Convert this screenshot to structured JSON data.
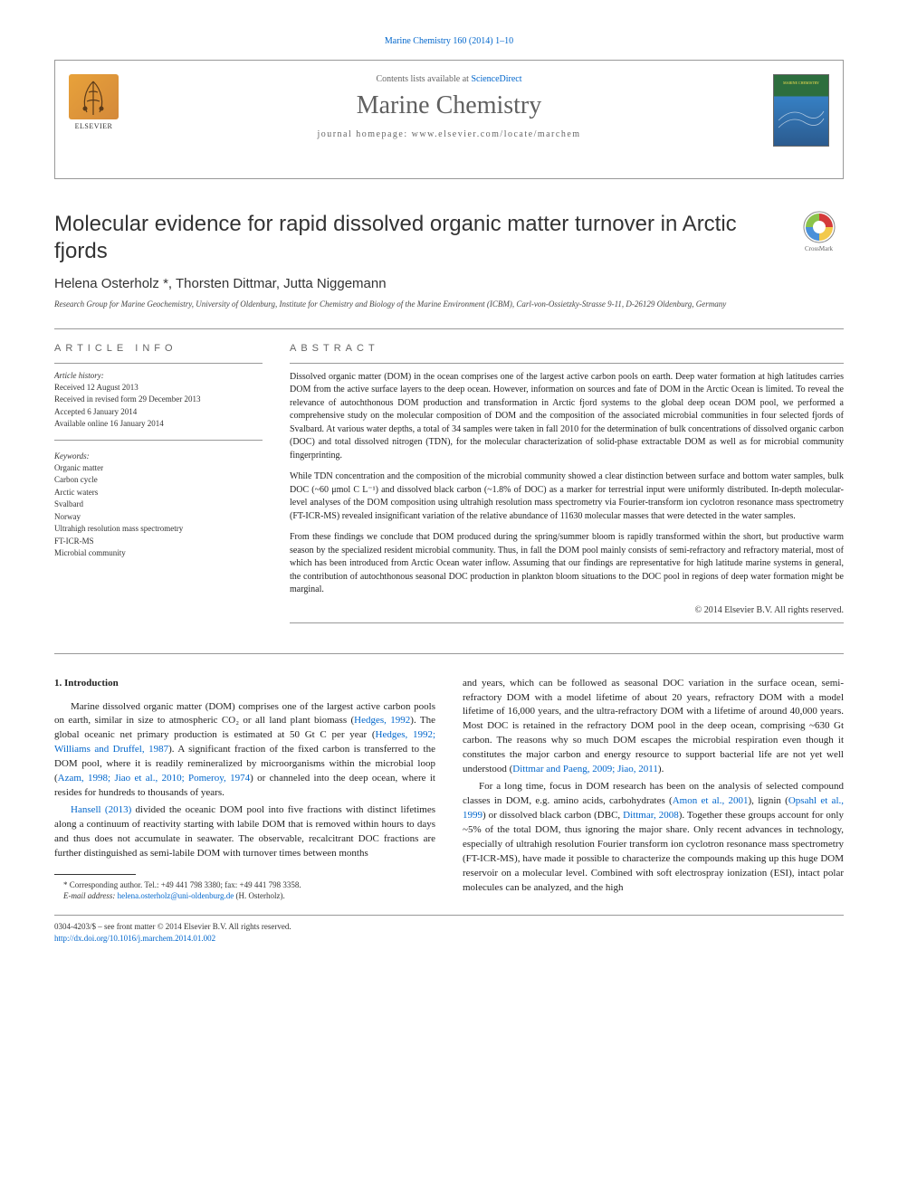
{
  "top_link": "Marine Chemistry 160 (2014) 1–10",
  "header": {
    "contents_prefix": "Contents lists available at ",
    "contents_link": "ScienceDirect",
    "journal_name": "Marine Chemistry",
    "homepage_prefix": "journal homepage: ",
    "homepage_url": "www.elsevier.com/locate/marchem",
    "publisher": "ELSEVIER"
  },
  "title": "Molecular evidence for rapid dissolved organic matter turnover in Arctic fjords",
  "crossmark": "CrossMark",
  "authors_html": "Helena Osterholz *, Thorsten Dittmar, Jutta Niggemann",
  "affiliation": "Research Group for Marine Geochemistry, University of Oldenburg, Institute for Chemistry and Biology of the Marine Environment (ICBM), Carl-von-Ossietzky-Strasse 9-11, D-26129 Oldenburg, Germany",
  "article_info": {
    "label": "article info",
    "history_label": "Article history:",
    "history": [
      "Received 12 August 2013",
      "Received in revised form 29 December 2013",
      "Accepted 6 January 2014",
      "Available online 16 January 2014"
    ],
    "keywords_label": "Keywords:",
    "keywords": [
      "Organic matter",
      "Carbon cycle",
      "Arctic waters",
      "Svalbard",
      "Norway",
      "Ultrahigh resolution mass spectrometry",
      "FT-ICR-MS",
      "Microbial community"
    ]
  },
  "abstract": {
    "label": "abstract",
    "paragraphs": [
      "Dissolved organic matter (DOM) in the ocean comprises one of the largest active carbon pools on earth. Deep water formation at high latitudes carries DOM from the active surface layers to the deep ocean. However, information on sources and fate of DOM in the Arctic Ocean is limited. To reveal the relevance of autochthonous DOM production and transformation in Arctic fjord systems to the global deep ocean DOM pool, we performed a comprehensive study on the molecular composition of DOM and the composition of the associated microbial communities in four selected fjords of Svalbard. At various water depths, a total of 34 samples were taken in fall 2010 for the determination of bulk concentrations of dissolved organic carbon (DOC) and total dissolved nitrogen (TDN), for the molecular characterization of solid-phase extractable DOM as well as for microbial community fingerprinting.",
      "While TDN concentration and the composition of the microbial community showed a clear distinction between surface and bottom water samples, bulk DOC (~60 μmol C L⁻¹) and dissolved black carbon (~1.8% of DOC) as a marker for terrestrial input were uniformly distributed. In-depth molecular-level analyses of the DOM composition using ultrahigh resolution mass spectrometry via Fourier-transform ion cyclotron resonance mass spectrometry (FT-ICR-MS) revealed insignificant variation of the relative abundance of 11630 molecular masses that were detected in the water samples.",
      "From these findings we conclude that DOM produced during the spring/summer bloom is rapidly transformed within the short, but productive warm season by the specialized resident microbial community. Thus, in fall the DOM pool mainly consists of semi-refractory and refractory material, most of which has been introduced from Arctic Ocean water inflow. Assuming that our findings are representative for high latitude marine systems in general, the contribution of autochthonous seasonal DOC production in plankton bloom situations to the DOC pool in regions of deep water formation might be marginal."
    ],
    "copyright": "© 2014 Elsevier B.V. All rights reserved."
  },
  "body": {
    "section1_heading": "1. Introduction",
    "left_paragraphs": [
      "Marine dissolved organic matter (DOM) comprises one of the largest active carbon pools on earth, similar in size to atmospheric CO₂ or all land plant biomass (<a>Hedges, 1992</a>). The global oceanic net primary production is estimated at 50 Gt C per year (<a>Hedges, 1992; Williams and Druffel, 1987</a>). A significant fraction of the fixed carbon is transferred to the DOM pool, where it is readily remineralized by microorganisms within the microbial loop (<a>Azam, 1998; Jiao et al., 2010; Pomeroy, 1974</a>) or channeled into the deep ocean, where it resides for hundreds to thousands of years.",
      "<a>Hansell (2013)</a> divided the oceanic DOM pool into five fractions with distinct lifetimes along a continuum of reactivity starting with labile DOM that is removed within hours to days and thus does not accumulate in seawater. The observable, recalcitrant DOC fractions are further distinguished as semi-labile DOM with turnover times between months"
    ],
    "right_paragraphs": [
      "and years, which can be followed as seasonal DOC variation in the surface ocean, semi-refractory DOM with a model lifetime of about 20 years, refractory DOM with a model lifetime of 16,000 years, and the ultra-refractory DOM with a lifetime of around 40,000 years. Most DOC is retained in the refractory DOM pool in the deep ocean, comprising ~630 Gt carbon. The reasons why so much DOM escapes the microbial respiration even though it constitutes the major carbon and energy resource to support bacterial life are not yet well understood (<a>Dittmar and Paeng, 2009; Jiao, 2011</a>).",
      "For a long time, focus in DOM research has been on the analysis of selected compound classes in DOM, e.g. amino acids, carbohydrates (<a>Amon et al., 2001</a>), lignin (<a>Opsahl et al., 1999</a>) or dissolved black carbon (DBC, <a>Dittmar, 2008</a>). Together these groups account for only ~5% of the total DOM, thus ignoring the major share. Only recent advances in technology, especially of ultrahigh resolution Fourier transform ion cyclotron resonance mass spectrometry (FT-ICR-MS), have made it possible to characterize the compounds making up this huge DOM reservoir on a molecular level. Combined with soft electrospray ionization (ESI), intact polar molecules can be analyzed, and the high"
    ]
  },
  "footnote": {
    "corr": "* Corresponding author. Tel.: +49 441 798 3380; fax: +49 441 798 3358.",
    "email_label": "E-mail address:",
    "email": "helena.osterholz@uni-oldenburg.de",
    "email_suffix": "(H. Osterholz)."
  },
  "footer": {
    "line1": "0304-4203/$ – see front matter © 2014 Elsevier B.V. All rights reserved.",
    "doi": "http://dx.doi.org/10.1016/j.marchem.2014.01.002"
  },
  "colors": {
    "link": "#0066cc",
    "text": "#222222",
    "border": "#999999"
  }
}
